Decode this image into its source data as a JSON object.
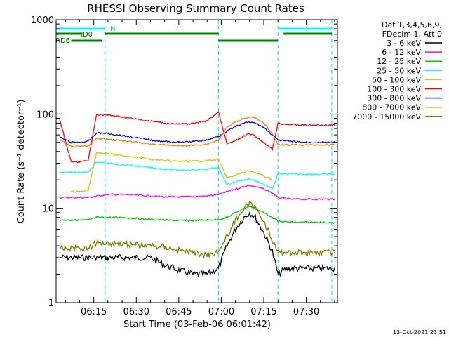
{
  "chart_data": {
    "type": "line",
    "title": "RHESSI Observing Summary Count Rates",
    "xlabel": "Start Time (03-Feb-06 06:01:42)",
    "ylabel": "Count Rate (s⁻¹ detector⁻¹)",
    "yscale": "log",
    "ylim": [
      1,
      1000
    ],
    "xlim": [
      "06:01:42",
      "07:41:00"
    ],
    "x_ticks": [
      "06:15",
      "06:30",
      "06:45",
      "07:00",
      "07:15",
      "07:30"
    ],
    "y_ticks": [
      "1",
      "10",
      "100",
      "1000"
    ],
    "grid": false,
    "legend_position": "top-right",
    "legend_header": [
      "Det 1,3,4,5,6,9,",
      "FDecim 1, Att 0"
    ],
    "timestamp": "13-Oct-2021 23:51",
    "x": [
      "06:03",
      "06:07",
      "06:10",
      "06:13",
      "06:16",
      "06:20",
      "06:25",
      "06:30",
      "06:35",
      "06:40",
      "06:45",
      "06:50",
      "06:55",
      "06:59",
      "07:02",
      "07:05",
      "07:08",
      "07:10",
      "07:12",
      "07:15",
      "07:18",
      "07:20",
      "07:22",
      "07:25",
      "07:30",
      "07:35",
      "07:40"
    ],
    "series": [
      {
        "name": "3 - 6 keV",
        "color": "#000000",
        "values": [
          3,
          3,
          3,
          3,
          3,
          3,
          3,
          3,
          3,
          2.5,
          2.2,
          2,
          2,
          2.3,
          4,
          6,
          8,
          9,
          8,
          5.5,
          3.5,
          2,
          2.2,
          2.3,
          2.3,
          2.3,
          2.3
        ]
      },
      {
        "name": "6 - 12 keV",
        "color": "#ff00ff",
        "values": [
          13,
          13,
          13,
          13,
          13.5,
          14,
          14,
          13.8,
          13.5,
          13.2,
          13.2,
          13.3,
          13.5,
          14,
          15,
          16,
          17,
          17.5,
          17,
          16,
          14.5,
          13,
          12.8,
          12.5,
          12.5,
          12.5,
          12.5
        ]
      },
      {
        "name": "12 - 25 keV",
        "color": "#00cc00",
        "values": [
          7.5,
          7.5,
          7.5,
          7.5,
          8,
          8,
          8,
          7.8,
          7.6,
          7.5,
          7.4,
          7.4,
          7.5,
          7.6,
          8,
          9,
          10,
          10.5,
          10,
          9,
          8,
          7.3,
          7.2,
          7.1,
          7.1,
          7.1,
          7
        ]
      },
      {
        "name": "25 - 50 keV",
        "color": "#00ffff",
        "values": [
          24,
          24,
          24,
          24,
          31,
          30,
          29,
          28,
          27,
          26,
          25.5,
          25.5,
          26,
          27,
          18,
          19,
          20,
          20.5,
          19.5,
          18,
          16,
          23,
          23,
          23,
          23,
          23,
          23
        ]
      },
      {
        "name": "50 - 100 keV",
        "color": "#e0c000",
        "values": [
          null,
          15,
          15,
          15.5,
          39,
          38,
          36,
          35,
          33,
          32,
          31.5,
          31.5,
          32,
          33,
          21,
          22.5,
          24,
          25,
          24,
          22,
          20,
          null,
          null,
          null,
          null,
          null,
          null
        ]
      },
      {
        "name": "100 - 300 keV",
        "color": "#ff0000",
        "values": [
          87,
          31,
          31,
          32,
          99,
          97,
          93,
          88,
          84,
          80,
          78,
          79,
          85,
          105,
          48,
          52,
          58,
          62,
          58,
          50,
          42,
          80,
          78,
          77,
          76,
          76,
          76
        ]
      },
      {
        "name": "300 - 800 keV",
        "color": "#0000ff",
        "values": [
          57,
          50,
          50,
          51,
          63,
          62,
          59,
          56,
          53,
          51,
          50,
          51,
          53,
          58,
          66,
          73,
          80,
          82,
          80,
          72,
          60,
          53,
          52,
          51,
          50,
          50,
          50
        ]
      },
      {
        "name": "800 - 7000 keV",
        "color": "#ff8000",
        "values": [
          53,
          45,
          45,
          46,
          55,
          54,
          52,
          50,
          48,
          47,
          46,
          46.5,
          48,
          53,
          72,
          82,
          90,
          93,
          90,
          80,
          62,
          48,
          47,
          47,
          47,
          47,
          47
        ]
      },
      {
        "name": "7000 - 15000 keV",
        "color": "#808000",
        "values": [
          3.8,
          3.8,
          3.8,
          3.8,
          4.3,
          4.3,
          4.2,
          4.1,
          4,
          3.9,
          3.6,
          3.4,
          3.2,
          3.5,
          5,
          7.5,
          10,
          11,
          10,
          7.5,
          4.5,
          3.4,
          3.4,
          3.4,
          3.4,
          3.4,
          3.4
        ]
      }
    ],
    "annotations": {
      "night_label": "N",
      "decim_labels": [
        "RD0",
        "RD6"
      ],
      "night_intervals": [
        [
          "06:01:42",
          "06:19:00"
        ],
        [
          "07:20:00",
          "07:39:00"
        ]
      ],
      "saa_lines": [
        "06:01:42",
        "06:19:00",
        "06:59:00",
        "07:20:00",
        "07:39:00"
      ],
      "decim_upper": [
        [
          "06:01:42",
          "06:11:00"
        ],
        [
          "06:19:00",
          "06:59:00"
        ],
        [
          "07:22:00",
          "07:39:00"
        ]
      ],
      "decim_lower": [
        [
          "06:07:00",
          "06:18:00"
        ],
        [
          "06:59:00",
          "07:20:00"
        ]
      ]
    }
  }
}
